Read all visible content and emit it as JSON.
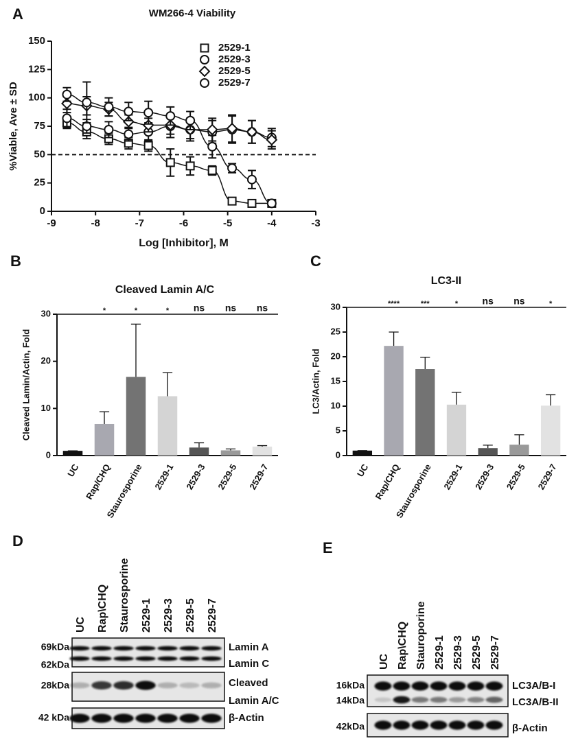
{
  "chart_data": [
    {
      "type": "scatter",
      "panel_label": "A",
      "title": "WM266-4 Viability",
      "x_label": "Log [Inhibitor], M",
      "y_label": "%Viable, Ave ± SD",
      "x": [
        -8.65,
        -8.2,
        -7.7,
        -7.25,
        -6.8,
        -6.3,
        -5.85,
        -5.35,
        -4.9,
        -4.45,
        -4.0
      ],
      "series": [
        {
          "name": "2529-1",
          "marker": "square",
          "values": [
            78,
            70,
            64,
            60,
            58,
            43,
            40,
            36,
            9,
            7,
            7
          ],
          "errors": [
            5,
            6,
            5,
            5,
            5,
            12,
            8,
            4,
            2,
            1,
            1
          ]
        },
        {
          "name": "2529-3",
          "marker": "circle",
          "values": [
            82,
            75,
            72,
            68,
            70,
            75,
            72,
            70,
            72,
            70,
            65
          ],
          "errors": [
            8,
            6,
            7,
            6,
            8,
            10,
            8,
            10,
            12,
            10,
            8
          ]
        },
        {
          "name": "2529-5",
          "marker": "diamond",
          "values": [
            95,
            93,
            90,
            79,
            76,
            76,
            72,
            72,
            73,
            70,
            63
          ],
          "errors": [
            8,
            8,
            6,
            6,
            6,
            8,
            10,
            10,
            12,
            10,
            8
          ]
        },
        {
          "name": "2529-7",
          "marker": "circle",
          "values": [
            103,
            96,
            92,
            88,
            87,
            84,
            80,
            57,
            38,
            28,
            7
          ],
          "errors": [
            6,
            18,
            8,
            8,
            10,
            8,
            8,
            10,
            4,
            8,
            2
          ]
        }
      ],
      "reference_line": 50,
      "xlim": [
        -9,
        -3
      ],
      "xticks": [
        -9,
        -8,
        -7,
        -6,
        -5,
        -4,
        -3
      ],
      "ylim": [
        0,
        150
      ],
      "yticks": [
        0,
        25,
        50,
        75,
        100,
        125,
        150
      ],
      "legend": "upper right"
    },
    {
      "type": "bar",
      "panel_label": "B",
      "title": "Cleaved Lamin A/C",
      "y_label": "Cleaved Lamin/Actin, Fold",
      "categories": [
        "UC",
        "Rap/CHQ",
        "Staurosporine",
        "2529-1",
        "2529-3",
        "2529-5",
        "2529-7"
      ],
      "values": [
        1,
        6.7,
        16.7,
        12.6,
        1.7,
        1.1,
        1.9
      ],
      "errors": [
        0,
        2.6,
        11.2,
        5,
        1,
        0.3,
        0.2
      ],
      "colors": [
        "#111111",
        "#a8a8b0",
        "#737373",
        "#d4d4d4",
        "#555555",
        "#999999",
        "#e2e2e2"
      ],
      "significance": [
        null,
        "*",
        "*",
        "*",
        "ns",
        "ns",
        "ns"
      ],
      "ylim": [
        0,
        30
      ],
      "yticks": [
        0,
        10,
        20,
        30
      ]
    },
    {
      "type": "bar",
      "panel_label": "C",
      "title": "LC3-II",
      "y_label": "LC3/Actin, Fold",
      "categories": [
        "UC",
        "Rap/CHQ",
        "Staurosporine",
        "2529-1",
        "2529-3",
        "2529-5",
        "2529-7"
      ],
      "values": [
        1,
        22.2,
        17.5,
        10.3,
        1.5,
        2.2,
        10.1
      ],
      "errors": [
        0,
        2.8,
        2.4,
        2.5,
        0.6,
        2,
        2.2
      ],
      "colors": [
        "#111111",
        "#a8a8b0",
        "#737373",
        "#d4d4d4",
        "#555555",
        "#999999",
        "#e2e2e2"
      ],
      "significance": [
        null,
        "****",
        "***",
        "*",
        "ns",
        "ns",
        "*"
      ],
      "ylim": [
        0,
        30
      ],
      "yticks": [
        0,
        5,
        10,
        15,
        20,
        25,
        30
      ]
    }
  ],
  "blots": [
    {
      "panel_label": "D",
      "lanes": [
        "UC",
        "Rap\\CHQ",
        "Staurosporine",
        "2529-1",
        "2529-3",
        "2529-5",
        "2529-7"
      ],
      "markers": [
        "69kDa",
        "62kDa",
        "28kDa",
        "42 kDa"
      ],
      "band_labels": [
        "Lamin A",
        "Lamin C",
        "Cleaved",
        "Lamin A/C",
        "β-Actin"
      ]
    },
    {
      "panel_label": "E",
      "lanes": [
        "UC",
        "Rap\\CHQ",
        "Stauroporine",
        "2529-1",
        "2529-3",
        "2529-5",
        "2529-7"
      ],
      "markers": [
        "16kDa",
        "14kDa",
        "42kDa"
      ],
      "band_labels": [
        "LC3A/B-I",
        "LC3A/B-II",
        "β-Actin"
      ]
    }
  ]
}
